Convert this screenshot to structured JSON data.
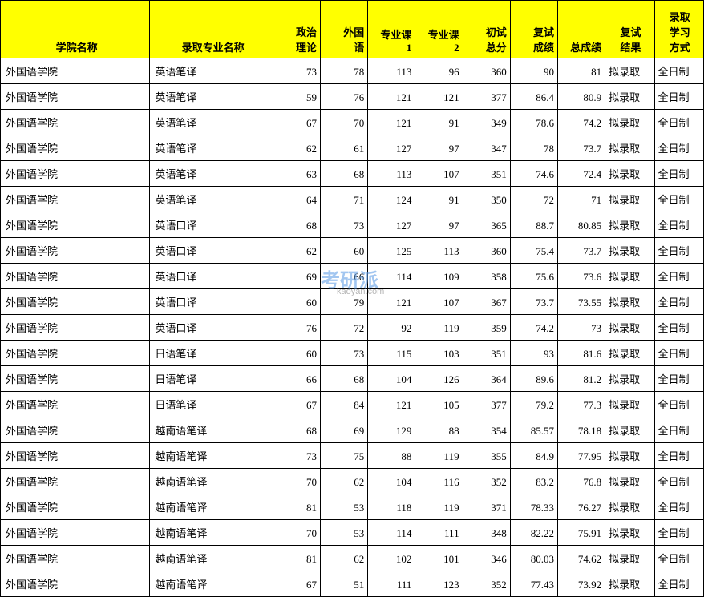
{
  "watermark": {
    "main": "考研派",
    "sub": "kaoyan.com"
  },
  "headers": {
    "college": "学院名称",
    "major": "录取专业名称",
    "politics": "政治\n理论",
    "foreign": "外国\n语",
    "course1": "专业课\n1",
    "course2": "专业课\n2",
    "prelim": "初试\n总分",
    "reexam": "复试\n成绩",
    "total": "总成绩",
    "result": "复试\n结果",
    "mode": "录取\n学习\n方式"
  },
  "rows": [
    {
      "college": "外国语学院",
      "major": "英语笔译",
      "c1": "73",
      "c2": "78",
      "c3": "113",
      "c4": "96",
      "c5": "360",
      "c6": "90",
      "c7": "81",
      "result": "拟录取",
      "mode": "全日制"
    },
    {
      "college": "外国语学院",
      "major": "英语笔译",
      "c1": "59",
      "c2": "76",
      "c3": "121",
      "c4": "121",
      "c5": "377",
      "c6": "86.4",
      "c7": "80.9",
      "result": "拟录取",
      "mode": "全日制"
    },
    {
      "college": "外国语学院",
      "major": "英语笔译",
      "c1": "67",
      "c2": "70",
      "c3": "121",
      "c4": "91",
      "c5": "349",
      "c6": "78.6",
      "c7": "74.2",
      "result": "拟录取",
      "mode": "全日制"
    },
    {
      "college": "外国语学院",
      "major": "英语笔译",
      "c1": "62",
      "c2": "61",
      "c3": "127",
      "c4": "97",
      "c5": "347",
      "c6": "78",
      "c7": "73.7",
      "result": "拟录取",
      "mode": "全日制"
    },
    {
      "college": "外国语学院",
      "major": "英语笔译",
      "c1": "63",
      "c2": "68",
      "c3": "113",
      "c4": "107",
      "c5": "351",
      "c6": "74.6",
      "c7": "72.4",
      "result": "拟录取",
      "mode": "全日制"
    },
    {
      "college": "外国语学院",
      "major": "英语笔译",
      "c1": "64",
      "c2": "71",
      "c3": "124",
      "c4": "91",
      "c5": "350",
      "c6": "72",
      "c7": "71",
      "result": "拟录取",
      "mode": "全日制"
    },
    {
      "college": "外国语学院",
      "major": "英语口译",
      "c1": "68",
      "c2": "73",
      "c3": "127",
      "c4": "97",
      "c5": "365",
      "c6": "88.7",
      "c7": "80.85",
      "result": "拟录取",
      "mode": "全日制"
    },
    {
      "college": "外国语学院",
      "major": "英语口译",
      "c1": "62",
      "c2": "60",
      "c3": "125",
      "c4": "113",
      "c5": "360",
      "c6": "75.4",
      "c7": "73.7",
      "result": "拟录取",
      "mode": "全日制"
    },
    {
      "college": "外国语学院",
      "major": "英语口译",
      "c1": "69",
      "c2": "66",
      "c3": "114",
      "c4": "109",
      "c5": "358",
      "c6": "75.6",
      "c7": "73.6",
      "result": "拟录取",
      "mode": "全日制"
    },
    {
      "college": "外国语学院",
      "major": "英语口译",
      "c1": "60",
      "c2": "79",
      "c3": "121",
      "c4": "107",
      "c5": "367",
      "c6": "73.7",
      "c7": "73.55",
      "result": "拟录取",
      "mode": "全日制"
    },
    {
      "college": "外国语学院",
      "major": "英语口译",
      "c1": "76",
      "c2": "72",
      "c3": "92",
      "c4": "119",
      "c5": "359",
      "c6": "74.2",
      "c7": "73",
      "result": "拟录取",
      "mode": "全日制"
    },
    {
      "college": "外国语学院",
      "major": "日语笔译",
      "c1": "60",
      "c2": "73",
      "c3": "115",
      "c4": "103",
      "c5": "351",
      "c6": "93",
      "c7": "81.6",
      "result": "拟录取",
      "mode": "全日制"
    },
    {
      "college": "外国语学院",
      "major": "日语笔译",
      "c1": "66",
      "c2": "68",
      "c3": "104",
      "c4": "126",
      "c5": "364",
      "c6": "89.6",
      "c7": "81.2",
      "result": "拟录取",
      "mode": "全日制"
    },
    {
      "college": "外国语学院",
      "major": "日语笔译",
      "c1": "67",
      "c2": "84",
      "c3": "121",
      "c4": "105",
      "c5": "377",
      "c6": "79.2",
      "c7": "77.3",
      "result": "拟录取",
      "mode": "全日制"
    },
    {
      "college": "外国语学院",
      "major": "越南语笔译",
      "c1": "68",
      "c2": "69",
      "c3": "129",
      "c4": "88",
      "c5": "354",
      "c6": "85.57",
      "c7": "78.18",
      "result": "拟录取",
      "mode": "全日制"
    },
    {
      "college": "外国语学院",
      "major": "越南语笔译",
      "c1": "73",
      "c2": "75",
      "c3": "88",
      "c4": "119",
      "c5": "355",
      "c6": "84.9",
      "c7": "77.95",
      "result": "拟录取",
      "mode": "全日制"
    },
    {
      "college": "外国语学院",
      "major": "越南语笔译",
      "c1": "70",
      "c2": "62",
      "c3": "104",
      "c4": "116",
      "c5": "352",
      "c6": "83.2",
      "c7": "76.8",
      "result": "拟录取",
      "mode": "全日制"
    },
    {
      "college": "外国语学院",
      "major": "越南语笔译",
      "c1": "81",
      "c2": "53",
      "c3": "118",
      "c4": "119",
      "c5": "371",
      "c6": "78.33",
      "c7": "76.27",
      "result": "拟录取",
      "mode": "全日制"
    },
    {
      "college": "外国语学院",
      "major": "越南语笔译",
      "c1": "70",
      "c2": "53",
      "c3": "114",
      "c4": "111",
      "c5": "348",
      "c6": "82.22",
      "c7": "75.91",
      "result": "拟录取",
      "mode": "全日制"
    },
    {
      "college": "外国语学院",
      "major": "越南语笔译",
      "c1": "81",
      "c2": "62",
      "c3": "102",
      "c4": "101",
      "c5": "346",
      "c6": "80.03",
      "c7": "74.62",
      "result": "拟录取",
      "mode": "全日制"
    },
    {
      "college": "外国语学院",
      "major": "越南语笔译",
      "c1": "67",
      "c2": "51",
      "c3": "111",
      "c4": "123",
      "c5": "352",
      "c6": "77.43",
      "c7": "73.92",
      "result": "拟录取",
      "mode": "全日制"
    }
  ]
}
